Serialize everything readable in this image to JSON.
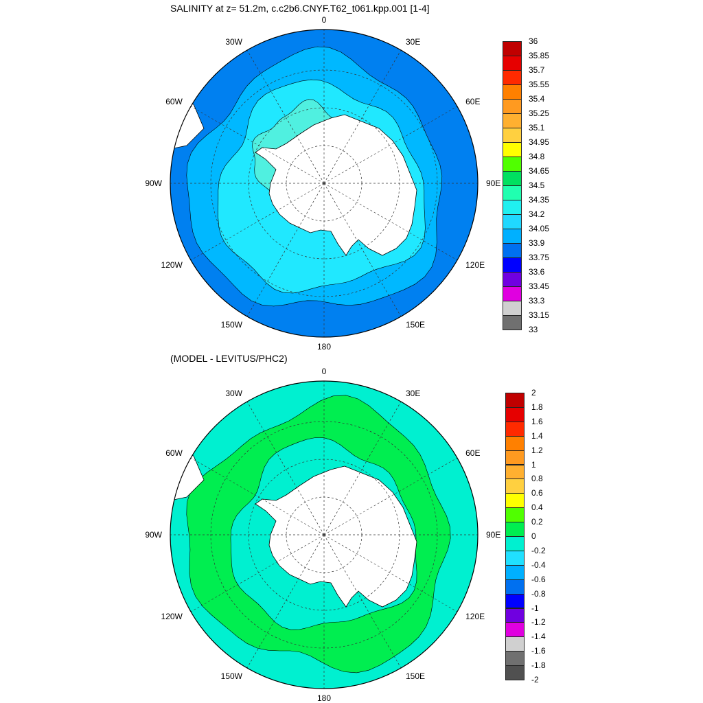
{
  "panels": [
    {
      "title": "SALINITY at z=  51.2m, c.c2b6.CNYF.T62_t061.kpp.001 [1-4]",
      "longitude_labels": [
        "0",
        "30E",
        "60E",
        "90E",
        "120E",
        "150E",
        "180",
        "150W",
        "120W",
        "90W",
        "60W",
        "30W"
      ],
      "colorbar": {
        "labels": [
          "36",
          "35.85",
          "35.7",
          "35.55",
          "35.4",
          "35.25",
          "35.1",
          "34.95",
          "34.8",
          "34.65",
          "34.5",
          "34.35",
          "34.2",
          "34.05",
          "33.9",
          "33.75",
          "33.6",
          "33.45",
          "33.3",
          "33.15",
          "33"
        ],
        "colors": [
          "#c00000",
          "#e60000",
          "#ff2a00",
          "#ff8000",
          "#ff9a20",
          "#ffb030",
          "#ffd040",
          "#ffff00",
          "#50ff00",
          "#00e060",
          "#20ffb0",
          "#20f0f0",
          "#20d8ff",
          "#00b0ff",
          "#0070f0",
          "#0000ff",
          "#7000e0",
          "#e000e0",
          "#d0d0d0",
          "#707070"
        ]
      },
      "fill_colors": {
        "outer": "#0080f0",
        "middle": "#00b8ff",
        "inner": "#20e8ff",
        "shelf": "#50f0e0",
        "land": "#ffffff"
      }
    },
    {
      "title": "(MODEL - LEVITUS/PHC2)",
      "longitude_labels": [
        "0",
        "30E",
        "60E",
        "90E",
        "120E",
        "150E",
        "180",
        "150W",
        "120W",
        "90W",
        "60W",
        "30W"
      ],
      "colorbar": {
        "labels": [
          "2",
          "1.8",
          "1.6",
          "1.4",
          "1.2",
          "1",
          "0.8",
          "0.6",
          "0.4",
          "0.2",
          "0",
          "-0.2",
          "-0.4",
          "-0.6",
          "-0.8",
          "-1",
          "-1.2",
          "-1.4",
          "-1.6",
          "-1.8",
          "-2"
        ],
        "colors": [
          "#c00000",
          "#e60000",
          "#ff2a00",
          "#ff8000",
          "#ff9a20",
          "#ffb030",
          "#ffd040",
          "#ffff00",
          "#50ff00",
          "#00ee50",
          "#00f0d0",
          "#20e0ff",
          "#00b0ff",
          "#0070f0",
          "#0000ff",
          "#7000e0",
          "#e000e0",
          "#d0d0d0",
          "#707070",
          "#505050"
        ]
      },
      "fill_colors": {
        "outer": "#00f0d0",
        "band": "#00ee50",
        "inner": "#00f0d0",
        "land": "#ffffff"
      }
    }
  ]
}
